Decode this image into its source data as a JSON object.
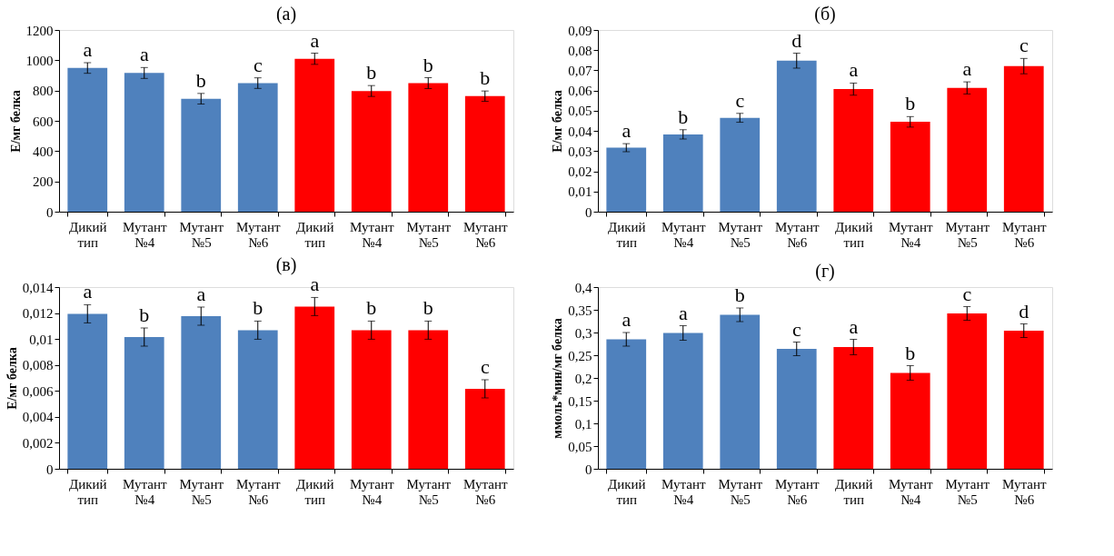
{
  "chart_data": [
    {
      "type": "bar",
      "title": "(а)",
      "ylabel": "Е/мг белка",
      "categories": [
        "Дикий тип",
        "Мутант №4",
        "Мутант №5",
        "Мутант №6",
        "Дикий тип",
        "Мутант №4",
        "Мутант №5",
        "Мутант №6"
      ],
      "colors": [
        "#4f81bd",
        "#4f81bd",
        "#4f81bd",
        "#4f81bd",
        "#ff0000",
        "#ff0000",
        "#ff0000",
        "#ff0000"
      ],
      "values": [
        949,
        916,
        746,
        849,
        1010,
        797,
        849,
        763
      ],
      "errors": [
        35,
        36,
        35,
        35,
        37,
        36,
        36,
        34
      ],
      "value_labels": [
        "a",
        "a",
        "b",
        "c",
        "a",
        "b",
        "b",
        "b"
      ],
      "ylim": [
        0,
        1200
      ],
      "yticks": [
        0,
        200,
        400,
        600,
        800,
        1000,
        1200
      ],
      "grid": false
    },
    {
      "type": "bar",
      "title": "(б)",
      "ylabel": "Е/мг белка",
      "categories": [
        "Дикий тип",
        "Мутант №4",
        "Мутант №5",
        "Мутант №6",
        "Дикий тип",
        "Мутант №4",
        "Мутант №5",
        "Мутант №6"
      ],
      "colors": [
        "#4f81bd",
        "#4f81bd",
        "#4f81bd",
        "#4f81bd",
        "#ff0000",
        "#ff0000",
        "#ff0000",
        "#ff0000"
      ],
      "values": [
        0.0317,
        0.0383,
        0.0465,
        0.0748,
        0.0607,
        0.0445,
        0.0613,
        0.0721
      ],
      "errors": [
        0.002,
        0.0023,
        0.0022,
        0.0037,
        0.003,
        0.0026,
        0.003,
        0.0038
      ],
      "value_labels": [
        "a",
        "b",
        "c",
        "d",
        "a",
        "b",
        "a",
        "c"
      ],
      "ylim": [
        0,
        0.09
      ],
      "yticks": [
        0,
        {
          "value": 0.01,
          "label": "0,01"
        },
        {
          "value": 0.02,
          "label": "0,02"
        },
        {
          "value": 0.03,
          "label": "0,03"
        },
        {
          "value": 0.04,
          "label": "0,04"
        },
        {
          "value": 0.05,
          "label": "0,05"
        },
        {
          "value": 0.06,
          "label": "0,06"
        },
        {
          "value": 0.07,
          "label": "0,07"
        },
        {
          "value": 0.08,
          "label": "0,08"
        },
        {
          "value": 0.09,
          "label": "0,09"
        }
      ],
      "grid": false
    },
    {
      "type": "bar",
      "title": "(в)",
      "ylabel": "Е/мг белка",
      "categories": [
        "Дикий тип",
        "Мутант №4",
        "Мутант №5",
        "Мутант №6",
        "Дикий тип",
        "Мутант №4",
        "Мутант №5",
        "Мутант №6"
      ],
      "colors": [
        "#4f81bd",
        "#4f81bd",
        "#4f81bd",
        "#4f81bd",
        "#ff0000",
        "#ff0000",
        "#ff0000",
        "#ff0000"
      ],
      "values": [
        0.01194,
        0.01015,
        0.01176,
        0.01068,
        0.0125,
        0.01068,
        0.01068,
        0.00616
      ],
      "errors": [
        0.0007,
        0.0007,
        0.0007,
        0.0007,
        0.0007,
        0.0007,
        0.0007,
        0.0007
      ],
      "value_labels": [
        "a",
        "b",
        "a",
        "b",
        "a",
        "b",
        "b",
        "c"
      ],
      "ylim": [
        0,
        0.014
      ],
      "yticks": [
        0,
        {
          "value": 0.002,
          "label": "0,002"
        },
        {
          "value": 0.004,
          "label": "0,004"
        },
        {
          "value": 0.006,
          "label": "0,006"
        },
        {
          "value": 0.008,
          "label": "0,008"
        },
        {
          "value": 0.01,
          "label": "0,01"
        },
        {
          "value": 0.012,
          "label": "0,012"
        },
        {
          "value": 0.014,
          "label": "0,014"
        }
      ],
      "grid": false
    },
    {
      "type": "bar",
      "title": "(г)",
      "ylabel": "ммоль*мин/мг белка",
      "categories": [
        "Дикий тип",
        "Мутант №4",
        "Мутант №5",
        "Мутант №6",
        "Дикий тип",
        "Мутант №4",
        "Мутант №5",
        "Мутант №6"
      ],
      "colors": [
        "#4f81bd",
        "#4f81bd",
        "#4f81bd",
        "#4f81bd",
        "#ff0000",
        "#ff0000",
        "#ff0000",
        "#ff0000"
      ],
      "values": [
        0.285,
        0.299,
        0.339,
        0.264,
        0.268,
        0.211,
        0.342,
        0.304
      ],
      "errors": [
        0.015,
        0.016,
        0.015,
        0.015,
        0.017,
        0.016,
        0.015,
        0.015
      ],
      "value_labels": [
        "a",
        "a",
        "b",
        "c",
        "a",
        "b",
        "c",
        "d"
      ],
      "ylim": [
        0,
        0.4
      ],
      "yticks": [
        0,
        {
          "value": 0.05,
          "label": "0,05"
        },
        {
          "value": 0.1,
          "label": "0,1"
        },
        {
          "value": 0.15,
          "label": "0,15"
        },
        {
          "value": 0.2,
          "label": "0,2"
        },
        {
          "value": 0.25,
          "label": "0,25"
        },
        {
          "value": 0.3,
          "label": "0,3"
        },
        {
          "value": 0.35,
          "label": "0,35"
        },
        {
          "value": 0.4,
          "label": "0,4"
        }
      ],
      "grid": false
    }
  ]
}
